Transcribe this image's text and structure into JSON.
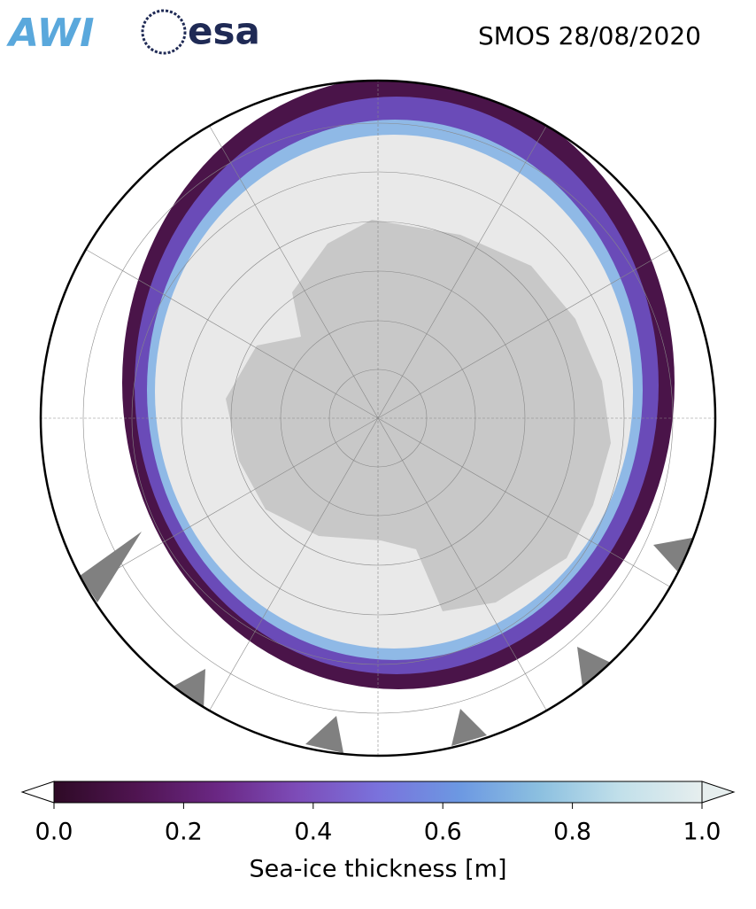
{
  "header": {
    "title": "SMOS 28/08/2020",
    "logos": [
      "AWI",
      "esa"
    ]
  },
  "colorbar": {
    "label": "Sea-ice thickness [m]",
    "lim": [
      0,
      1
    ],
    "ticks": [
      {
        "value": 0,
        "label": "0.0"
      },
      {
        "value": 0.2,
        "label": "0.2"
      },
      {
        "value": 0.4,
        "label": "0.4"
      },
      {
        "value": 0.6,
        "label": "0.6"
      },
      {
        "value": 0.8,
        "label": "0.8"
      },
      {
        "value": 1,
        "label": "1.0"
      }
    ],
    "colors": [
      "#2e0a26",
      "#4f1450",
      "#6a2783",
      "#7d4cb8",
      "#7a72dc",
      "#6c98e2",
      "#8cc0e0",
      "#c2e0ea",
      "#e6eeee"
    ]
  }
}
